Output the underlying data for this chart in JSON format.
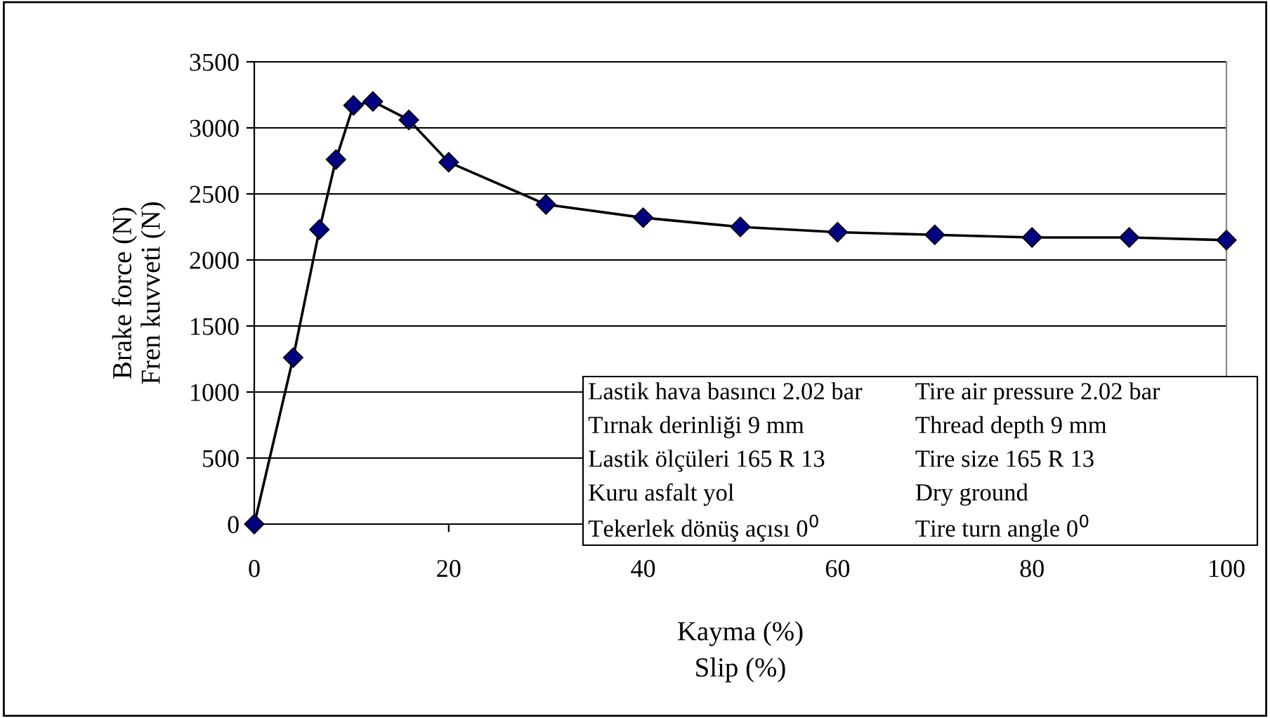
{
  "chart_data": {
    "type": "line",
    "xlabel": "Kayma (%)\nSlip (%)",
    "ylabel": "Brake force (N)\nFren kuvveti (N)",
    "x": [
      0,
      4,
      6.7,
      8.4,
      10.2,
      12.2,
      15.9,
      20,
      30,
      40,
      50,
      60,
      70,
      80,
      90,
      100
    ],
    "series": [
      {
        "color": "#000080",
        "values": [
          0,
          1260,
          2230,
          2760,
          3170,
          3200,
          3060,
          2740,
          2420,
          2320,
          2250,
          2210,
          2190,
          2170,
          2170,
          2150
        ]
      }
    ],
    "xlim": [
      0,
      100
    ],
    "xticks": [
      0,
      20,
      40,
      60,
      80,
      100
    ],
    "ylim": [
      0,
      3500
    ],
    "yticks": [
      0,
      500,
      1000,
      1500,
      2000,
      2500,
      3000,
      3500
    ],
    "grid": "y",
    "marker": "diamond",
    "line_style": "solid",
    "legend": false,
    "annotations": [
      "Lastik hava basıncı 2.02 bar",
      "Tire air pressure 2.02 bar",
      "Tırnak derinliği 9 mm",
      "Thread depth 9 mm",
      "Lastik ölçüleri 165 R 13",
      "Tire size 165 R 13",
      "Kuru asfalt yol",
      "Dry ground",
      "Tekerlek dönüş açısı 0$^{0}$",
      "Tire turn angle 0$^{0}$"
    ]
  }
}
